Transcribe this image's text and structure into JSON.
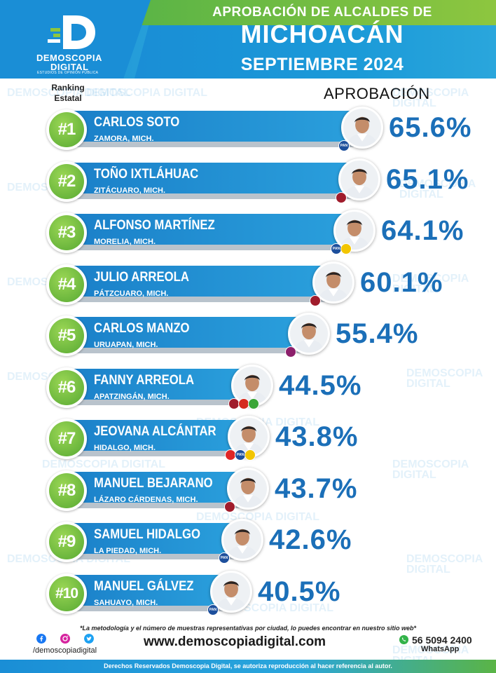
{
  "header": {
    "logo_line1": "DEMOSCOPIA",
    "logo_line2": "DIGITAL",
    "logo_line3": "ESTUDIOS DE OPINIÓN PÚBLICA",
    "title_line1": "APROBACIÓN DE ALCALDES DE",
    "title_line2": "MICHOACÁN",
    "title_line3": "SEPTIEMBRE 2024"
  },
  "labels": {
    "ranking": "Ranking Estatal",
    "approval": "APROBACIÓN"
  },
  "chart_data": {
    "type": "bar",
    "title": "APROBACIÓN DE ALCALDES DE MICHOACÁN",
    "subtitle": "SEPTIEMBRE 2024",
    "value_label": "APROBACIÓN",
    "unit": "%",
    "categories": [
      "CARLOS SOTO",
      "TOÑO IXTLÁHUAC",
      "ALFONSO MARTÍNEZ",
      "JULIO ARREOLA",
      "CARLOS MANZO",
      "FANNY ARREOLA",
      "JEOVANA ALCÁNTAR",
      "MANUEL BEJARANO",
      "SAMUEL HIDALGO",
      "MANUEL GÁLVEZ"
    ],
    "values": [
      65.6,
      65.1,
      64.1,
      60.1,
      55.4,
      44.5,
      43.8,
      43.7,
      42.6,
      40.5
    ],
    "rows": [
      {
        "rank": "#1",
        "name": "CARLOS SOTO",
        "city": "ZAMORA, MICH.",
        "value": 65.6,
        "value_label": "65.6%",
        "parties": [
          "PAN"
        ]
      },
      {
        "rank": "#2",
        "name": "TOÑO IXTLÁHUAC",
        "city": "ZITÁCUARO, MICH.",
        "value": 65.1,
        "value_label": "65.1%",
        "parties": [
          "MORENA"
        ]
      },
      {
        "rank": "#3",
        "name": "ALFONSO MARTÍNEZ",
        "city": "MORELIA, MICH.",
        "value": 64.1,
        "value_label": "64.1%",
        "parties": [
          "PAN",
          "PRD"
        ]
      },
      {
        "rank": "#4",
        "name": "JULIO ARREOLA",
        "city": "PÁTZCUARO, MICH.",
        "value": 60.1,
        "value_label": "60.1%",
        "parties": [
          "MORENA"
        ]
      },
      {
        "rank": "#5",
        "name": "CARLOS MANZO",
        "city": "URUAPAN, MICH.",
        "value": 55.4,
        "value_label": "55.4%",
        "parties": [
          "INDEPENDIENTE"
        ]
      },
      {
        "rank": "#6",
        "name": "FANNY ARREOLA",
        "city": "APATZINGÁN, MICH.",
        "value": 44.5,
        "value_label": "44.5%",
        "parties": [
          "MORENA",
          "PT",
          "PVEM"
        ]
      },
      {
        "rank": "#7",
        "name": "JEOVANA ALCÁNTAR",
        "city": "HIDALGO, MICH.",
        "value": 43.8,
        "value_label": "43.8%",
        "parties": [
          "PRI",
          "PAN",
          "PRD"
        ]
      },
      {
        "rank": "#8",
        "name": "MANUEL BEJARANO",
        "city": "LÁZARO CÁRDENAS, MICH.",
        "value": 43.7,
        "value_label": "43.7%",
        "parties": [
          "MORENA"
        ]
      },
      {
        "rank": "#9",
        "name": "SAMUEL HIDALGO",
        "city": "LA PIEDAD, MICH.",
        "value": 42.6,
        "value_label": "42.6%",
        "parties": [
          "PAN"
        ]
      },
      {
        "rank": "#10",
        "name": "MANUEL GÁLVEZ",
        "city": "SAHUAYO, MICH.",
        "value": 40.5,
        "value_label": "40.5%",
        "parties": [
          "PAN"
        ]
      }
    ],
    "colors": {
      "bar": "#1a7fc8",
      "badge": "#6cbf3c",
      "value_text": "#1b6fb8"
    }
  },
  "party_colors": {
    "PAN": "#1d4f9c",
    "MORENA": "#a01c2c",
    "PRD": "#f2c500",
    "PRI": "#e02626",
    "PT": "#d52b1e",
    "PVEM": "#3aa537",
    "INDEPENDIENTE": "#8c1f6b"
  },
  "party_short": {
    "PAN": "PAN",
    "MORENA": "",
    "PRD": "",
    "PRI": "",
    "PT": "",
    "PVEM": "",
    "INDEPENDIENTE": ""
  },
  "watermark_text": "DEMOSCOPIA DIGITAL",
  "footer": {
    "footnote": "*La metodología y el número de muestras representativas por ciudad, lo puedes encontrar en nuestro sitio web*",
    "social_handle": "/demoscopiadigital",
    "website": "www.demoscopiadigital.com",
    "phone": "56 5094 2400",
    "whatsapp": "WhatsApp",
    "copyright": "Derechos Reservados Demoscopia Digital, se autoriza reproducción al hacer referencia al autor.",
    "icons": [
      "facebook-icon",
      "instagram-icon",
      "twitter-icon",
      "whatsapp-icon"
    ]
  }
}
